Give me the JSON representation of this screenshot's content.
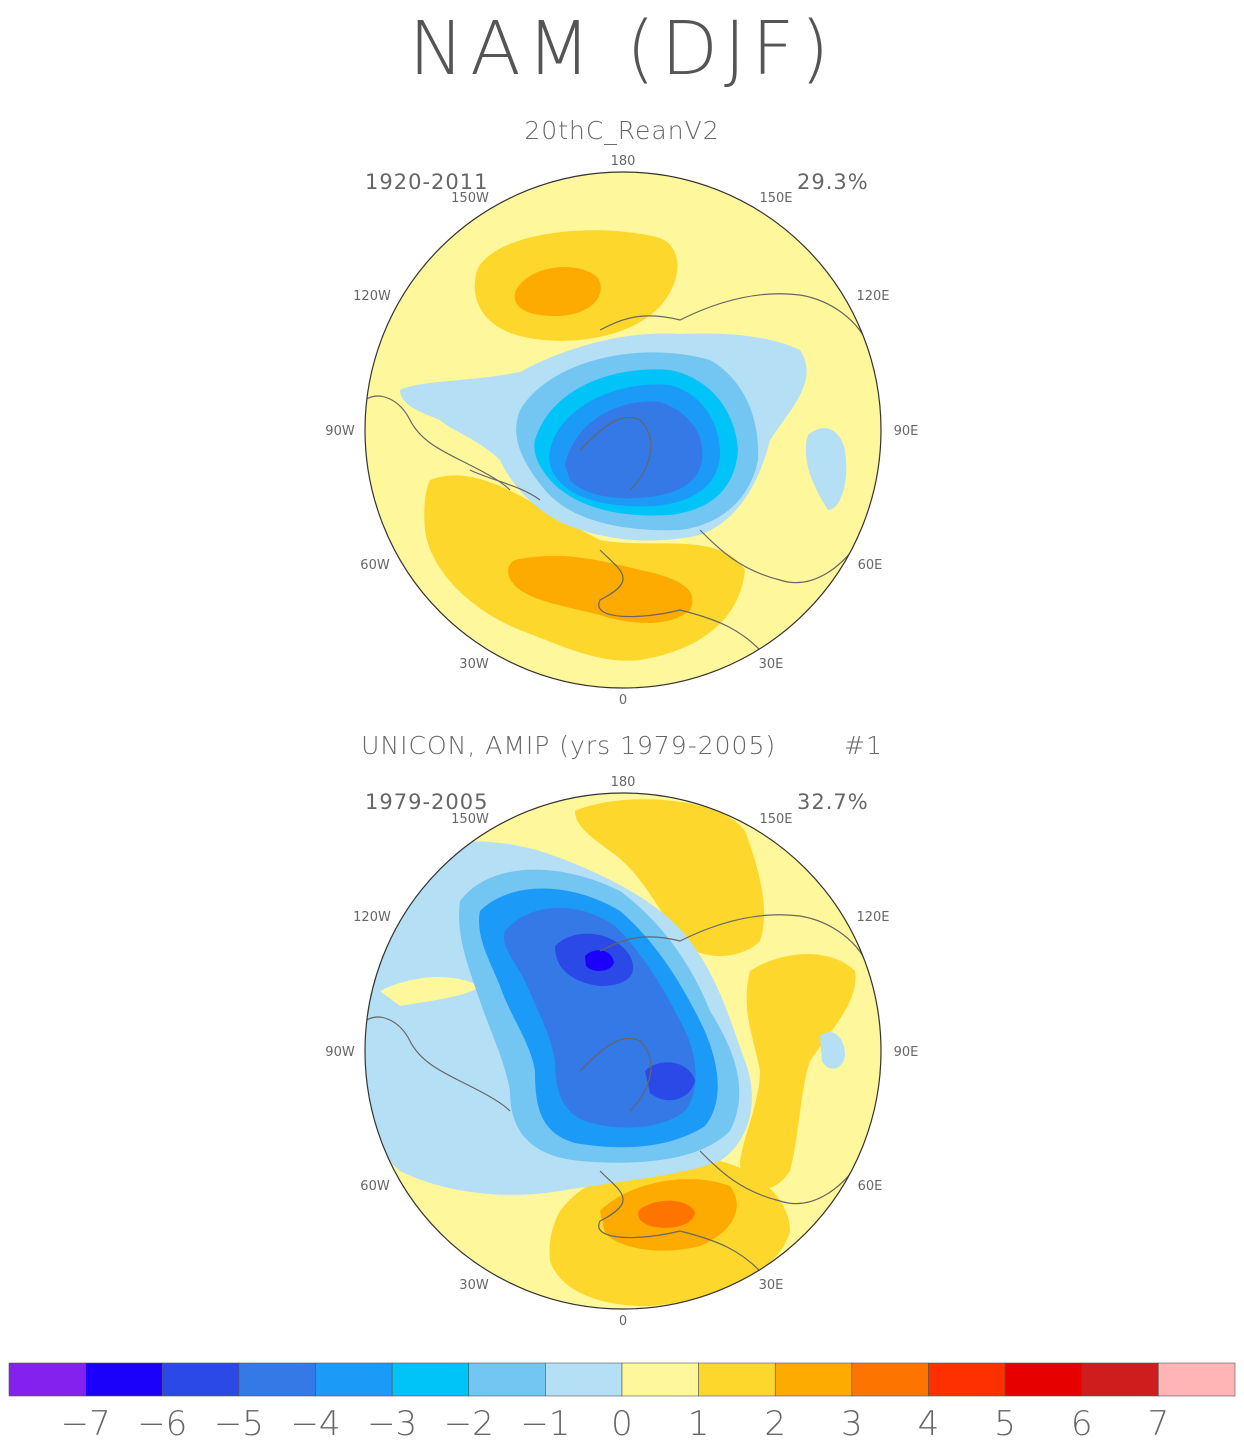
{
  "title": "NAM (DJF)",
  "panels": [
    {
      "title": "20thC_ReanV2",
      "years": "1920-2011",
      "percent": "29.3%",
      "lon_labels": {
        "top": "180",
        "bottom": "0",
        "l150": "150W",
        "r150": "150E",
        "l120": "120W",
        "r120": "120E",
        "l90": "90W",
        "r90": "90E",
        "l60": "60W",
        "r60": "60E",
        "l30": "30W",
        "r30": "30E"
      }
    },
    {
      "title": "UNICON, AMIP (yrs 1979-2005)",
      "member": "#1",
      "years": "1979-2005",
      "percent": "32.7%",
      "lon_labels": {
        "top": "180",
        "bottom": "0",
        "l150": "150W",
        "r150": "150E",
        "l120": "120W",
        "r120": "120E",
        "l90": "90W",
        "r90": "90E",
        "l60": "60W",
        "r60": "60E",
        "l30": "30W",
        "r30": "30E"
      }
    }
  ],
  "colorbar": {
    "colors": [
      "#8521ee",
      "#1b00fa",
      "#2b49e6",
      "#3479e6",
      "#1c9af7",
      "#00c3f8",
      "#73c6f2",
      "#b5dff5",
      "#fff79c",
      "#fed72c",
      "#fdab00",
      "#fd7400",
      "#ff3000",
      "#e70000",
      "#cf1c1c",
      "#ffb5b5"
    ],
    "labels": [
      "-7",
      "-6",
      "-5",
      "-4",
      "-3",
      "-2",
      "-1",
      "0",
      "1",
      "2",
      "3",
      "4",
      "5",
      "6",
      "7"
    ]
  }
}
